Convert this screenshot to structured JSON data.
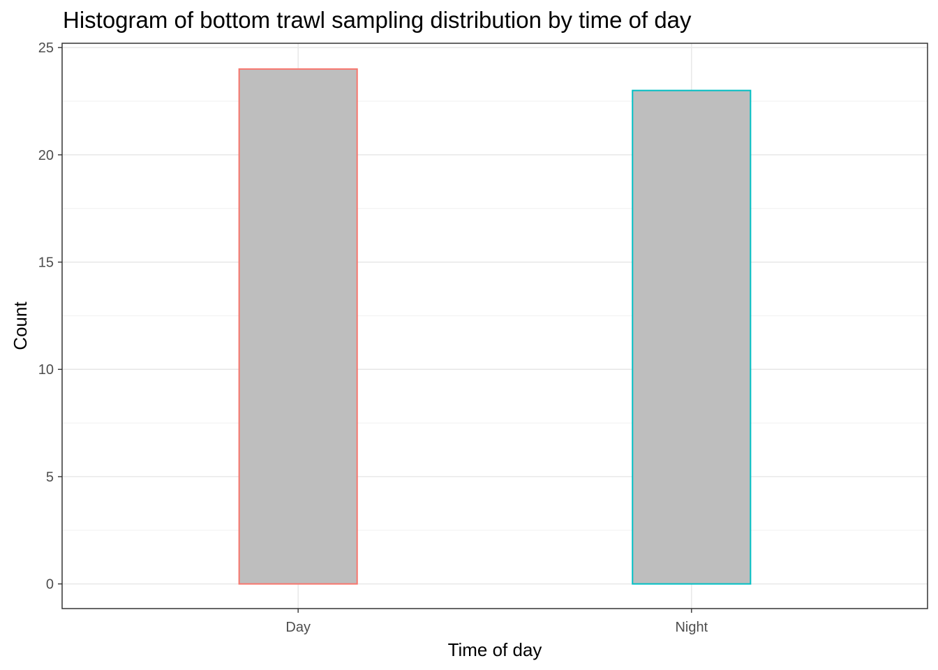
{
  "chart_data": {
    "type": "bar",
    "title": "Histogram of bottom trawl sampling distribution by time of day",
    "xlabel": "Time of day",
    "ylabel": "Count",
    "categories": [
      "Day",
      "Night"
    ],
    "values": [
      24,
      23
    ],
    "bar_fill": "#bebebe",
    "bar_outline_colors": [
      "#f8766d",
      "#00bfc4"
    ],
    "ylim": [
      -1.15,
      25.2
    ],
    "yticks": [
      0,
      5,
      10,
      15,
      20,
      25
    ],
    "grid": true,
    "legend": "none"
  }
}
